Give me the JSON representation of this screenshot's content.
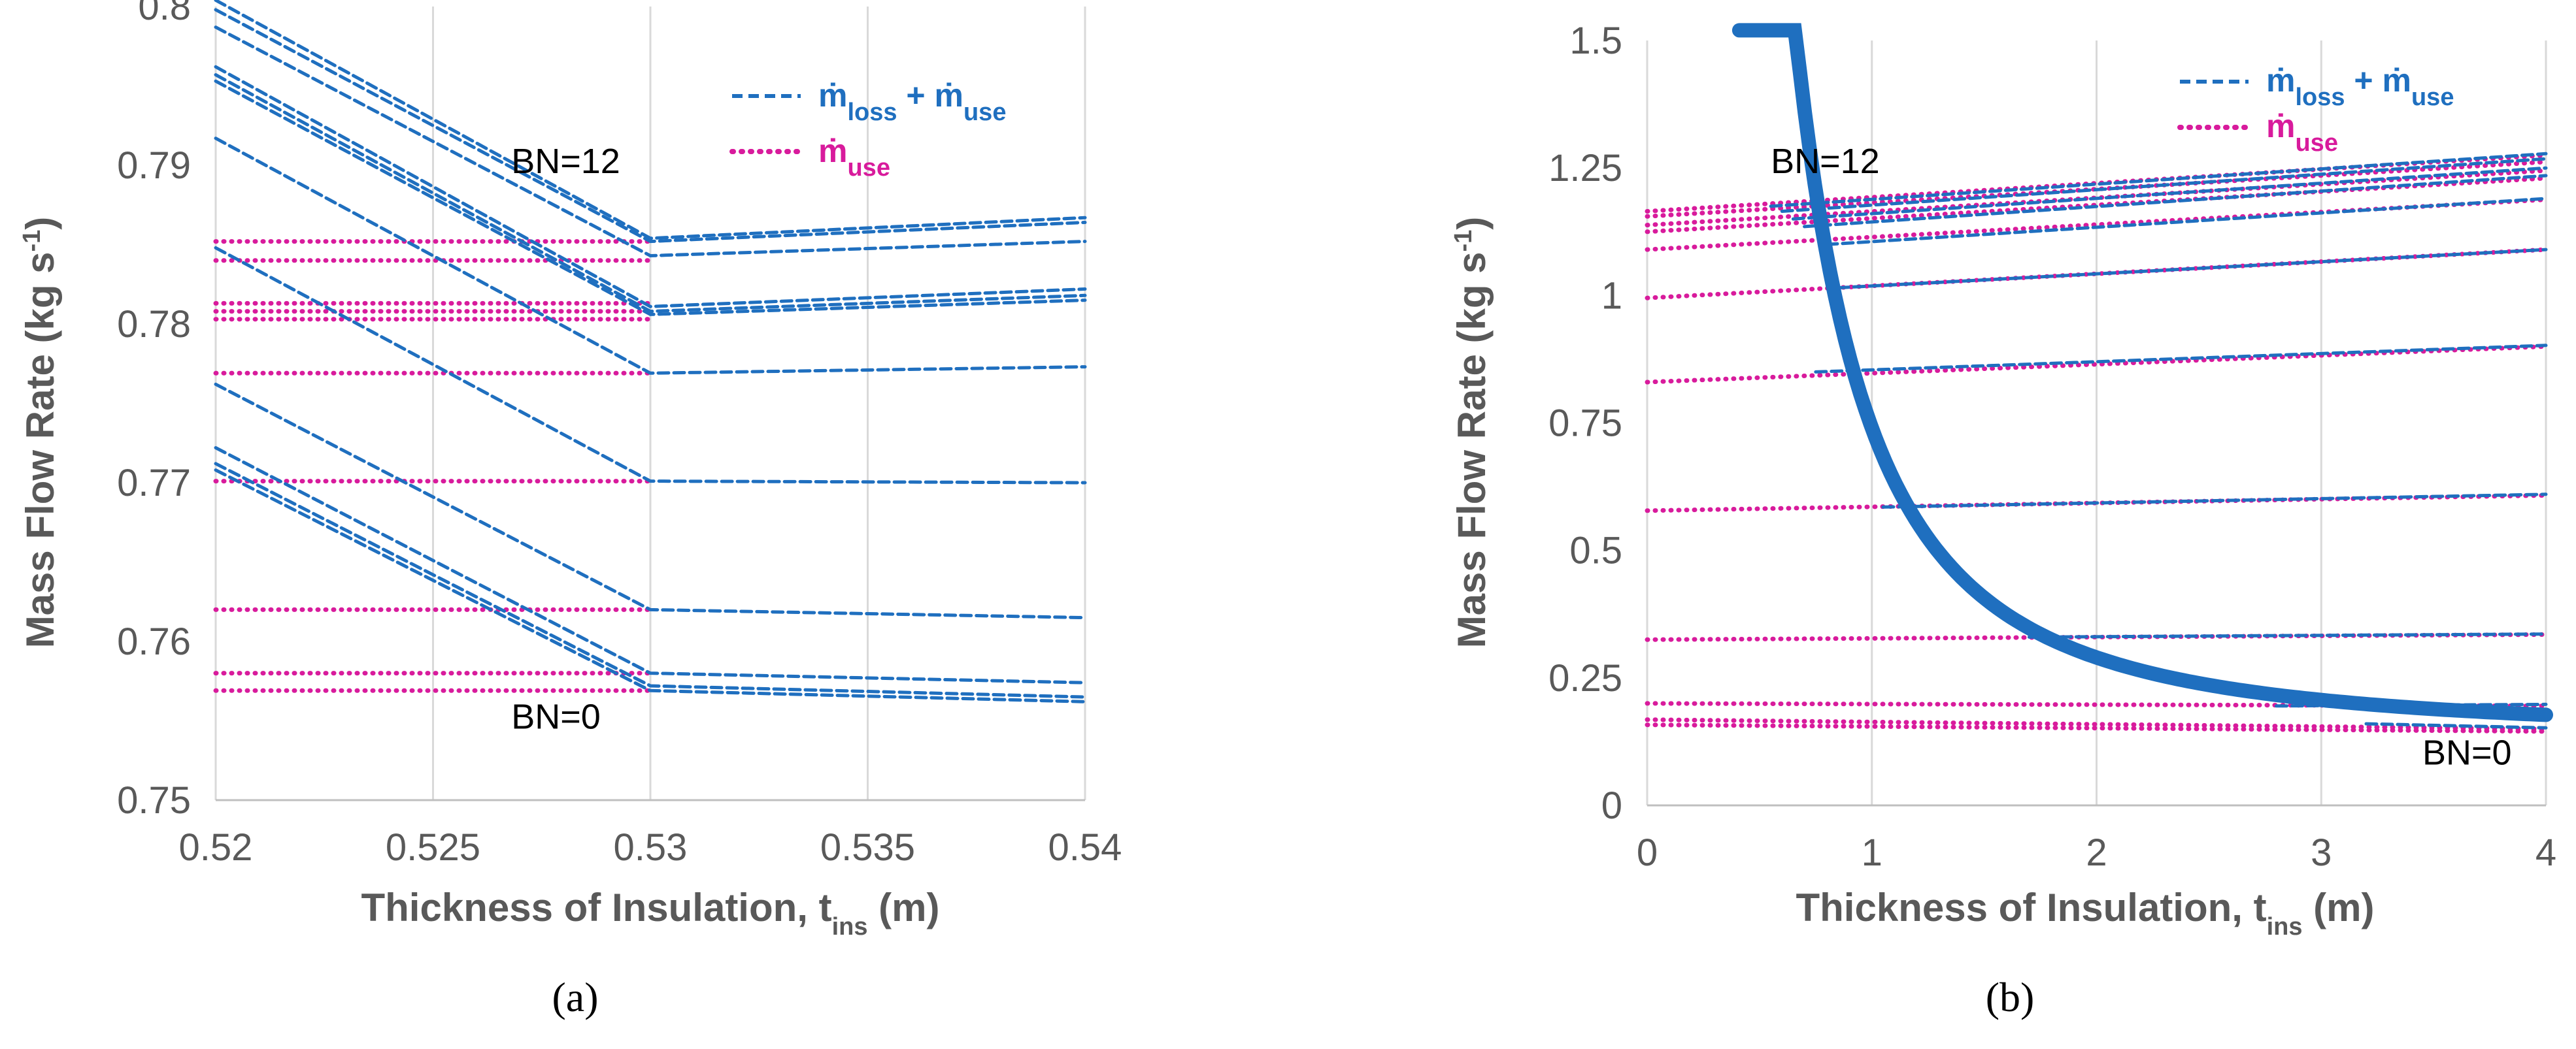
{
  "colors": {
    "loss_use": "#1f6fbf",
    "use": "#d81b9c",
    "grid": "#d9d9d9",
    "axis_text": "#595959"
  },
  "legend": {
    "loss_use_label": "ṁloss + ṁuse",
    "loss_use_parts": {
      "m1": "ṁ",
      "sub1": "loss",
      "plus": " + ",
      "m2": "ṁ",
      "sub2": "use"
    },
    "use_parts": {
      "m": "ṁ",
      "sub": "use"
    }
  },
  "chart_data": [
    {
      "id": "a",
      "type": "line",
      "panel_label": "(a)",
      "xlabel": "Thickness of Insulation, tins (m)",
      "xlabel_parts": {
        "main": "Thickness of Insulation, t",
        "sub": "ins",
        "tail": " (m)"
      },
      "ylabel": "Mass Flow Rate (kg s-1)",
      "ylabel_parts": {
        "main": "Mass Flow Rate (kg s",
        "sup": "-1",
        "tail": ")"
      },
      "xlim": [
        0.52,
        0.54
      ],
      "ylim": [
        0.75,
        0.8
      ],
      "xticks": [
        0.52,
        0.525,
        0.53,
        0.535,
        0.54
      ],
      "xtick_labels": [
        "0.52",
        "0.525",
        "0.53",
        "0.535",
        "0.54"
      ],
      "yticks": [
        0.75,
        0.76,
        0.77,
        0.78,
        0.79,
        0.8
      ],
      "ytick_labels": [
        "0.75",
        "0.76",
        "0.77",
        "0.78",
        "0.79",
        "0.8"
      ],
      "annotations": [
        {
          "text": "BN=12",
          "x": 0.5268,
          "y": 0.7895
        },
        {
          "text": "BN=0",
          "x": 0.5268,
          "y": 0.7545
        }
      ],
      "series": [
        {
          "name": "ṁloss + ṁuse",
          "style": "dashed",
          "color": "#1f6fbf",
          "lines": [
            [
              [
                0.52,
                0.8004
              ],
              [
                0.53,
                0.7854
              ],
              [
                0.54,
                0.7867
              ]
            ],
            [
              [
                0.52,
                0.7998
              ],
              [
                0.53,
                0.7852
              ],
              [
                0.54,
                0.7864
              ]
            ],
            [
              [
                0.52,
                0.7987
              ],
              [
                0.53,
                0.7843
              ],
              [
                0.54,
                0.7852
              ]
            ],
            [
              [
                0.52,
                0.7962
              ],
              [
                0.53,
                0.7811
              ],
              [
                0.54,
                0.7822
              ]
            ],
            [
              [
                0.52,
                0.7957
              ],
              [
                0.53,
                0.7808
              ],
              [
                0.54,
                0.7818
              ]
            ],
            [
              [
                0.52,
                0.7953
              ],
              [
                0.53,
                0.7806
              ],
              [
                0.54,
                0.7815
              ]
            ],
            [
              [
                0.52,
                0.7917
              ],
              [
                0.53,
                0.7769
              ],
              [
                0.54,
                0.7773
              ]
            ],
            [
              [
                0.52,
                0.7848
              ],
              [
                0.53,
                0.7701
              ],
              [
                0.54,
                0.77
              ]
            ],
            [
              [
                0.52,
                0.7762
              ],
              [
                0.53,
                0.762
              ],
              [
                0.54,
                0.7615
              ]
            ],
            [
              [
                0.52,
                0.7722
              ],
              [
                0.53,
                0.758
              ],
              [
                0.54,
                0.7574
              ]
            ],
            [
              [
                0.52,
                0.7712
              ],
              [
                0.53,
                0.7572
              ],
              [
                0.54,
                0.7565
              ]
            ],
            [
              [
                0.52,
                0.7708
              ],
              [
                0.53,
                0.7569
              ],
              [
                0.54,
                0.7562
              ]
            ]
          ]
        },
        {
          "name": "ṁuse",
          "style": "dotted",
          "color": "#d81b9c",
          "lines": [
            [
              [
                0.52,
                0.7852
              ],
              [
                0.53,
                0.7852
              ]
            ],
            [
              [
                0.52,
                0.784
              ],
              [
                0.53,
                0.784
              ]
            ],
            [
              [
                0.52,
                0.7813
              ],
              [
                0.53,
                0.7813
              ]
            ],
            [
              [
                0.52,
                0.7808
              ],
              [
                0.53,
                0.7808
              ]
            ],
            [
              [
                0.52,
                0.7803
              ],
              [
                0.53,
                0.7803
              ]
            ],
            [
              [
                0.52,
                0.7769
              ],
              [
                0.53,
                0.7769
              ]
            ],
            [
              [
                0.52,
                0.7701
              ],
              [
                0.53,
                0.7701
              ]
            ],
            [
              [
                0.52,
                0.762
              ],
              [
                0.53,
                0.762
              ]
            ],
            [
              [
                0.52,
                0.758
              ],
              [
                0.53,
                0.758
              ]
            ],
            [
              [
                0.52,
                0.7569
              ],
              [
                0.53,
                0.7569
              ]
            ]
          ]
        }
      ]
    },
    {
      "id": "b",
      "type": "line",
      "panel_label": "(b)",
      "xlabel": "Thickness of Insulation, tins (m)",
      "xlabel_parts": {
        "main": "Thickness of Insulation, t",
        "sub": "ins",
        "tail": " (m)"
      },
      "ylabel": "Mass Flow Rate (kg s-1)",
      "ylabel_parts": {
        "main": "Mass Flow Rate (kg s",
        "sup": "-1",
        "tail": ")"
      },
      "xlim": [
        0,
        4
      ],
      "ylim": [
        0,
        1.5
      ],
      "xticks": [
        0,
        1,
        2,
        3,
        4
      ],
      "xtick_labels": [
        "0",
        "1",
        "2",
        "3",
        "4"
      ],
      "yticks": [
        0,
        0.25,
        0.5,
        0.75,
        1,
        1.25,
        1.5
      ],
      "ytick_labels": [
        "0",
        "0.25",
        "0.5",
        "0.75",
        "1",
        "1.25",
        "1.5"
      ],
      "annotations": [
        {
          "text": "BN=12",
          "x": 0.55,
          "y": 1.24
        },
        {
          "text": "BN=0",
          "x": 3.45,
          "y": 0.08
        }
      ],
      "curve": {
        "name": "ṁloss + ṁuse (envelope)",
        "color": "#1f6fbf",
        "a": 0.6,
        "c": 0.14,
        "x_start": 0.41,
        "x_end": 4
      },
      "series": [
        {
          "name": "ṁloss + ṁuse",
          "style": "dashed",
          "color": "#1f6fbf",
          "lines": [
            [
              [
                0.55,
                1.175
              ],
              [
                4,
                1.278
              ]
            ],
            [
              [
                0.6,
                1.165
              ],
              [
                4,
                1.268
              ]
            ],
            [
              [
                0.65,
                1.15
              ],
              [
                4,
                1.25
              ]
            ],
            [
              [
                0.7,
                1.135
              ],
              [
                4,
                1.235
              ]
            ],
            [
              [
                0.8,
                1.1
              ],
              [
                4,
                1.19
              ]
            ],
            [
              [
                0.85,
                1.015
              ],
              [
                4,
                1.09
              ]
            ],
            [
              [
                0.75,
                0.85
              ],
              [
                4,
                0.902
              ]
            ],
            [
              [
                1.05,
                0.585
              ],
              [
                4,
                0.61
              ]
            ],
            [
              [
                1.7,
                0.33
              ],
              [
                4,
                0.336
              ]
            ],
            [
              [
                2.8,
                0.195
              ],
              [
                4,
                0.198
              ]
            ],
            [
              [
                3.2,
                0.16
              ],
              [
                4,
                0.152
              ]
            ]
          ]
        },
        {
          "name": "ṁuse",
          "style": "dotted",
          "color": "#d81b9c",
          "lines": [
            [
              [
                0,
                1.165
              ],
              [
                4,
                1.275
              ]
            ],
            [
              [
                0,
                1.155
              ],
              [
                4,
                1.262
              ]
            ],
            [
              [
                0,
                1.138
              ],
              [
                4,
                1.245
              ]
            ],
            [
              [
                0,
                1.125
              ],
              [
                4,
                1.23
              ]
            ],
            [
              [
                0,
                1.09
              ],
              [
                4,
                1.188
              ]
            ],
            [
              [
                0,
                0.995
              ],
              [
                4,
                1.09
              ]
            ],
            [
              [
                0,
                0.83
              ],
              [
                4,
                0.9
              ]
            ],
            [
              [
                0,
                0.578
              ],
              [
                4,
                0.608
              ]
            ],
            [
              [
                0,
                0.325
              ],
              [
                4,
                0.335
              ]
            ],
            [
              [
                0,
                0.2
              ],
              [
                4,
                0.195
              ]
            ],
            [
              [
                0,
                0.168
              ],
              [
                4,
                0.15
              ]
            ],
            [
              [
                0,
                0.158
              ],
              [
                4,
                0.145
              ]
            ]
          ]
        }
      ]
    }
  ]
}
